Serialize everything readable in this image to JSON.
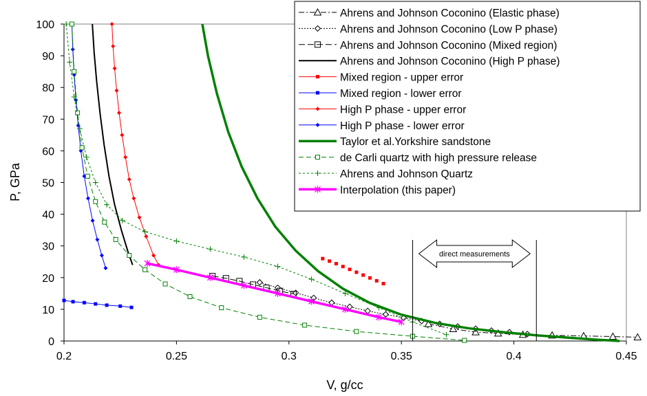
{
  "chart_data": {
    "type": "line",
    "xlabel": "V, g/cc",
    "ylabel": "P, GPa",
    "xlim": [
      0.2,
      0.45
    ],
    "ylim": [
      0,
      100
    ],
    "x_ticks": [
      "0.2",
      "0.25",
      "0.3",
      "0.35",
      "0.4",
      "0.45"
    ],
    "y_ticks": [
      "0",
      "10",
      "20",
      "30",
      "40",
      "50",
      "60",
      "70",
      "80",
      "90",
      "100"
    ],
    "grid": false,
    "legend_position": "top-right",
    "annotation": "direct measurements",
    "annotation_range": [
      0.355,
      0.41
    ],
    "series": [
      {
        "name": "Ahrens and Johnson Coconino (Elastic phase)",
        "color": "#000000",
        "dash": "8,3,2,3",
        "marker": "triangle",
        "width": 1,
        "x": [
          0.362,
          0.373,
          0.383,
          0.393,
          0.404,
          0.417,
          0.431,
          0.444,
          0.455
        ],
        "y": [
          5.4,
          3.8,
          2.8,
          2.4,
          2.0,
          1.8,
          1.6,
          1.4,
          1.2
        ]
      },
      {
        "name": "Ahrens and Johnson Coconino (Low P phase)",
        "color": "#000000",
        "dash": "2,2",
        "marker": "diamond",
        "width": 1,
        "x": [
          0.287,
          0.295,
          0.303,
          0.311,
          0.319,
          0.327,
          0.335,
          0.343,
          0.351,
          0.359,
          0.367,
          0.375,
          0.383,
          0.39,
          0.398,
          0.406
        ],
        "y": [
          18.5,
          16.8,
          15.2,
          13.6,
          12.1,
          10.8,
          9.5,
          8.4,
          7.3,
          6.3,
          5.4,
          4.6,
          3.9,
          3.3,
          2.8,
          2.2
        ]
      },
      {
        "name": "Ahrens and Johnson Coconino (Mixed region)",
        "color": "#000000",
        "dash": "9,4",
        "marker": "square",
        "width": 1,
        "x": [
          0.266,
          0.272,
          0.278,
          0.284,
          0.29,
          0.296,
          0.302
        ],
        "y": [
          20.5,
          19.8,
          18.9,
          17.8,
          16.8,
          15.8,
          14.8
        ]
      },
      {
        "name": "Ahrens and Johnson Coconino (High P phase)",
        "color": "#000000",
        "dash": "",
        "marker": "none",
        "width": 2,
        "x": [
          0.2126,
          0.2134,
          0.2145,
          0.216,
          0.2178,
          0.22,
          0.2225,
          0.2255,
          0.2285,
          0.2305
        ],
        "y": [
          100,
          91,
          82,
          72,
          62,
          52,
          43,
          35,
          28,
          24
        ]
      },
      {
        "name": "Mixed region - upper error",
        "color": "#ff0000",
        "dash": "",
        "marker": "square-small",
        "width": 0,
        "x": [
          0.315,
          0.318,
          0.321,
          0.324,
          0.327,
          0.33,
          0.333,
          0.336,
          0.339,
          0.342
        ],
        "y": [
          26.0,
          25.2,
          24.4,
          23.5,
          22.6,
          21.7,
          20.8,
          19.9,
          19.0,
          18.1
        ]
      },
      {
        "name": "Mixed region - lower error",
        "color": "#0000ff",
        "dash": "",
        "marker": "square-small",
        "width": 1,
        "x": [
          0.2,
          0.204,
          0.209,
          0.214,
          0.219,
          0.225,
          0.23
        ],
        "y": [
          12.8,
          12.4,
          12.1,
          11.7,
          11.3,
          11.0,
          10.6
        ]
      },
      {
        "name": "High P phase - upper error",
        "color": "#ff0000",
        "dash": "",
        "marker": "diamond-small",
        "width": 1,
        "x": [
          0.2213,
          0.2218,
          0.2225,
          0.2234,
          0.2245,
          0.2258,
          0.2273,
          0.229,
          0.231,
          0.2335,
          0.2365,
          0.2398,
          0.242
        ],
        "y": [
          100,
          93,
          86,
          79,
          72,
          65,
          58,
          51,
          45,
          39,
          33,
          27,
          24
        ]
      },
      {
        "name": "High P phase - lower error",
        "color": "#0000ff",
        "dash": "",
        "marker": "diamond-small",
        "width": 1,
        "x": [
          0.2035,
          0.2039,
          0.2045,
          0.2053,
          0.2063,
          0.2075,
          0.209,
          0.2107,
          0.2127,
          0.2148,
          0.2168,
          0.2185
        ],
        "y": [
          100,
          92,
          84,
          76,
          68,
          60,
          52,
          45,
          38,
          32,
          27,
          23
        ]
      },
      {
        "name": "Taylor et al.Yorkshire sandstone",
        "color": "#008000",
        "dash": "",
        "marker": "none",
        "width": 3.5,
        "x": [
          0.2615,
          0.264,
          0.268,
          0.273,
          0.279,
          0.286,
          0.294,
          0.303,
          0.313,
          0.324,
          0.336,
          0.35,
          0.365,
          0.38,
          0.395,
          0.41,
          0.425,
          0.437,
          0.447
        ],
        "y": [
          100,
          90,
          78,
          66,
          55,
          45,
          36,
          28.5,
          22,
          16.5,
          12,
          8.3,
          5.7,
          4.0,
          2.8,
          1.8,
          1.0,
          0.4,
          0
        ]
      },
      {
        "name": "de Carli quartz with high pressure release",
        "color": "#008000",
        "dash": "7,4",
        "marker": "square-open",
        "width": 1,
        "x": [
          0.2035,
          0.2045,
          0.206,
          0.208,
          0.2105,
          0.214,
          0.218,
          0.223,
          0.229,
          0.236,
          0.245,
          0.256,
          0.27,
          0.287,
          0.307,
          0.33,
          0.355,
          0.378
        ],
        "y": [
          100,
          85,
          72,
          61,
          52,
          44,
          37.5,
          32,
          27,
          22.5,
          18,
          14,
          10.5,
          7.5,
          5,
          3,
          1.5,
          0.2
        ]
      },
      {
        "name": "Ahrens and Johnson Quartz",
        "color": "#008000",
        "dash": "3,3",
        "marker": "plus",
        "width": 1,
        "x": [
          0.201,
          0.2025,
          0.2045,
          0.207,
          0.21,
          0.214,
          0.219,
          0.226,
          0.236,
          0.25,
          0.265,
          0.28,
          0.295,
          0.31,
          0.325,
          0.34,
          0.355,
          0.37
        ],
        "y": [
          100,
          88,
          77,
          67,
          58,
          50,
          43,
          38,
          34.5,
          31.5,
          29,
          26.5,
          23.5,
          19.5,
          15,
          10.5,
          6,
          2
        ]
      },
      {
        "name": "Interpolation (this paper)",
        "color": "#ff00ff",
        "dash": "",
        "marker": "asterisk",
        "width": 3.5,
        "x": [
          0.237,
          0.25,
          0.265,
          0.28,
          0.295,
          0.31,
          0.325,
          0.34,
          0.35
        ],
        "y": [
          24.5,
          22.5,
          20,
          17.5,
          15,
          12.5,
          10,
          7.5,
          6
        ]
      }
    ]
  }
}
